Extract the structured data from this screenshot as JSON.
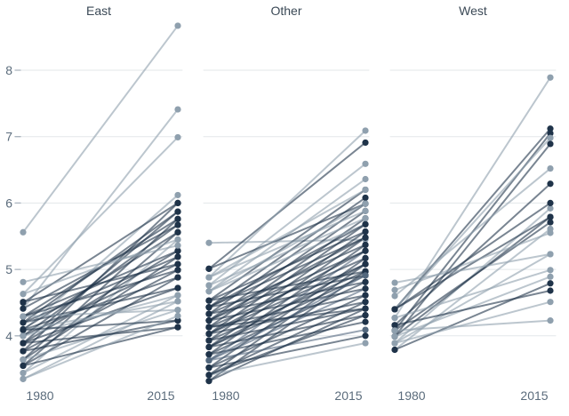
{
  "colors": {
    "light": "#8fa0ae",
    "dark": "#1f3349",
    "mid": "#53687e",
    "grid": "#e3e7ea",
    "tick": "#aab4be",
    "axis_text": "#5b6c7c",
    "title_text": "#3b4956",
    "background": "#ffffff"
  },
  "axis": {
    "y_ticks": [
      8,
      7,
      6,
      5,
      4
    ],
    "x_labels": [
      "1980",
      "2015"
    ],
    "y_domain": [
      3.2,
      8.8
    ]
  },
  "chart_data": {
    "type": "line",
    "subtype": "slopegraph",
    "x": [
      "1980",
      "2015"
    ],
    "grid": "horizontal-only",
    "legend": "none",
    "panels": [
      {
        "title": "East",
        "lines": [
          [
            5.56,
            8.67,
            "l"
          ],
          [
            4.41,
            7.41,
            "l"
          ],
          [
            4.63,
            6.99,
            "l"
          ],
          [
            4.08,
            6.12,
            "l"
          ],
          [
            4.5,
            6.0,
            "d"
          ],
          [
            3.77,
            6.0,
            "d"
          ],
          [
            4.2,
            5.87,
            "d"
          ],
          [
            3.89,
            5.87,
            "d"
          ],
          [
            4.29,
            5.76,
            "d"
          ],
          [
            3.64,
            5.76,
            "d"
          ],
          [
            4.0,
            5.67,
            "d"
          ],
          [
            4.41,
            5.67,
            "d"
          ],
          [
            3.55,
            5.56,
            "d"
          ],
          [
            4.1,
            5.56,
            "d"
          ],
          [
            4.63,
            5.45,
            "l"
          ],
          [
            3.44,
            5.45,
            "l"
          ],
          [
            4.29,
            5.28,
            "d"
          ],
          [
            3.89,
            5.28,
            "d"
          ],
          [
            4.2,
            5.19,
            "d"
          ],
          [
            3.64,
            5.19,
            "d"
          ],
          [
            4.0,
            5.08,
            "d"
          ],
          [
            4.51,
            5.08,
            "d"
          ],
          [
            3.77,
            4.99,
            "d"
          ],
          [
            4.29,
            4.99,
            "d"
          ],
          [
            3.55,
            4.88,
            "d"
          ],
          [
            4.09,
            4.88,
            "d"
          ],
          [
            4.81,
            5.36,
            "l"
          ],
          [
            3.89,
            4.72,
            "d"
          ],
          [
            4.2,
            4.72,
            "d"
          ],
          [
            3.44,
            4.61,
            "l"
          ],
          [
            4.0,
            4.61,
            "l"
          ],
          [
            3.35,
            4.52,
            "l"
          ],
          [
            4.09,
            4.52,
            "l"
          ],
          [
            3.64,
            4.39,
            "l"
          ],
          [
            4.29,
            4.39,
            "l"
          ],
          [
            3.77,
            4.23,
            "d"
          ],
          [
            4.09,
            4.23,
            "d"
          ],
          [
            3.55,
            4.13,
            "d"
          ],
          [
            3.89,
            4.13,
            "d"
          ],
          [
            3.35,
            4.3,
            "l"
          ]
        ]
      },
      {
        "title": "Other",
        "lines": [
          [
            5.4,
            5.45,
            "l"
          ],
          [
            5.01,
            6.91,
            "d"
          ],
          [
            4.88,
            7.09,
            "l"
          ],
          [
            4.76,
            6.59,
            "l"
          ],
          [
            4.67,
            6.36,
            "l"
          ],
          [
            4.53,
            6.2,
            "d"
          ],
          [
            4.43,
            6.08,
            "d"
          ],
          [
            4.33,
            5.99,
            "d"
          ],
          [
            4.23,
            5.88,
            "d"
          ],
          [
            4.13,
            5.77,
            "d"
          ],
          [
            4.03,
            5.68,
            "d"
          ],
          [
            3.93,
            5.57,
            "d"
          ],
          [
            3.83,
            5.48,
            "d"
          ],
          [
            3.72,
            5.37,
            "d"
          ],
          [
            3.63,
            5.28,
            "m"
          ],
          [
            3.52,
            5.17,
            "d"
          ],
          [
            3.41,
            5.08,
            "d"
          ],
          [
            3.32,
            4.97,
            "d"
          ],
          [
            5.01,
            5.99,
            "d"
          ],
          [
            4.88,
            5.88,
            "l"
          ],
          [
            4.76,
            5.77,
            "l"
          ],
          [
            4.67,
            5.68,
            "l"
          ],
          [
            4.53,
            5.57,
            "d"
          ],
          [
            4.43,
            5.48,
            "d"
          ],
          [
            4.33,
            5.37,
            "d"
          ],
          [
            4.23,
            5.28,
            "d"
          ],
          [
            4.13,
            5.17,
            "d"
          ],
          [
            4.03,
            5.08,
            "d"
          ],
          [
            3.93,
            4.97,
            "d"
          ],
          [
            3.83,
            4.91,
            "d"
          ],
          [
            3.72,
            4.81,
            "d"
          ],
          [
            3.63,
            4.71,
            "m"
          ],
          [
            3.52,
            4.61,
            "d"
          ],
          [
            3.41,
            4.51,
            "d"
          ],
          [
            3.32,
            4.41,
            "d"
          ],
          [
            4.53,
            4.97,
            "d"
          ],
          [
            4.43,
            4.91,
            "d"
          ],
          [
            4.33,
            4.81,
            "d"
          ],
          [
            4.23,
            4.71,
            "d"
          ],
          [
            4.13,
            4.61,
            "d"
          ],
          [
            4.03,
            4.51,
            "d"
          ],
          [
            3.93,
            4.41,
            "d"
          ],
          [
            3.83,
            4.31,
            "d"
          ],
          [
            3.72,
            4.21,
            "d"
          ],
          [
            3.63,
            4.09,
            "m"
          ],
          [
            3.52,
            4.0,
            "d"
          ],
          [
            3.41,
            3.89,
            "l"
          ],
          [
            4.88,
            6.2,
            "l"
          ],
          [
            4.67,
            5.99,
            "l"
          ],
          [
            4.43,
            5.68,
            "d"
          ],
          [
            4.23,
            5.48,
            "d"
          ],
          [
            4.03,
            5.28,
            "d"
          ],
          [
            3.83,
            5.08,
            "d"
          ],
          [
            3.63,
            4.91,
            "m"
          ],
          [
            3.41,
            4.31,
            "d"
          ],
          [
            4.13,
            4.41,
            "d"
          ]
        ]
      },
      {
        "title": "West",
        "lines": [
          [
            4.27,
            7.89,
            "l"
          ],
          [
            4.4,
            7.12,
            "d"
          ],
          [
            4.08,
            7.05,
            "d"
          ],
          [
            4.4,
            6.98,
            "l"
          ],
          [
            3.99,
            6.89,
            "d"
          ],
          [
            4.6,
            6.52,
            "l"
          ],
          [
            4.16,
            6.29,
            "d"
          ],
          [
            3.89,
            5.92,
            "l"
          ],
          [
            4.4,
            5.79,
            "d"
          ],
          [
            3.99,
            5.79,
            "d"
          ],
          [
            4.08,
            5.71,
            "d"
          ],
          [
            3.79,
            5.61,
            "l"
          ],
          [
            4.69,
            5.55,
            "l"
          ],
          [
            4.8,
            5.23,
            "l"
          ],
          [
            3.89,
            5.23,
            "l"
          ],
          [
            4.27,
            4.99,
            "l"
          ],
          [
            3.99,
            4.89,
            "l"
          ],
          [
            3.79,
            4.79,
            "d"
          ],
          [
            4.16,
            4.68,
            "d"
          ],
          [
            3.89,
            4.51,
            "l"
          ],
          [
            4.08,
            4.23,
            "l"
          ],
          [
            4.4,
            6.0,
            "d"
          ]
        ]
      }
    ]
  }
}
